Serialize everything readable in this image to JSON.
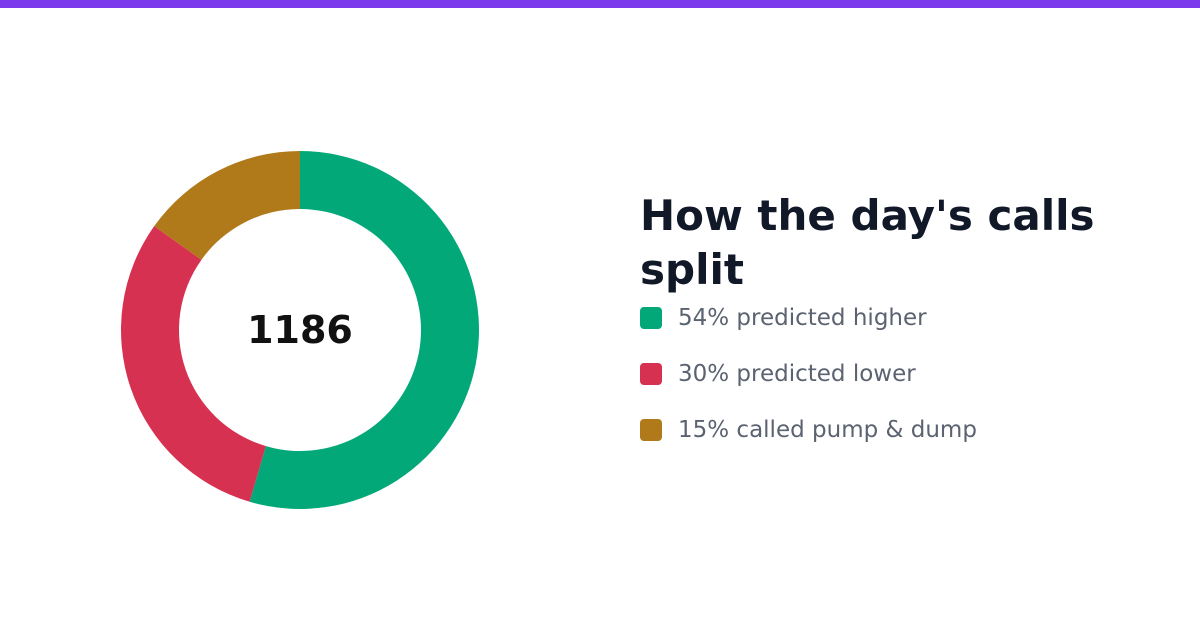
{
  "accent_color": "#7c3aed",
  "center_value": "1186",
  "title": "How the day's calls split",
  "legend": [
    {
      "label": "54% predicted higher",
      "color": "#03a878"
    },
    {
      "label": "30% predicted lower",
      "color": "#d73151"
    },
    {
      "label": "15% called pump & dump",
      "color": "#b07a1a"
    }
  ],
  "chart_data": {
    "type": "pie",
    "variant": "donut",
    "total": 1186,
    "categories": [
      "predicted higher",
      "predicted lower",
      "called pump & dump"
    ],
    "values": [
      54,
      30,
      15
    ],
    "colors": [
      "#03a878",
      "#d73151",
      "#b07a1a"
    ],
    "legend_position": "right"
  }
}
